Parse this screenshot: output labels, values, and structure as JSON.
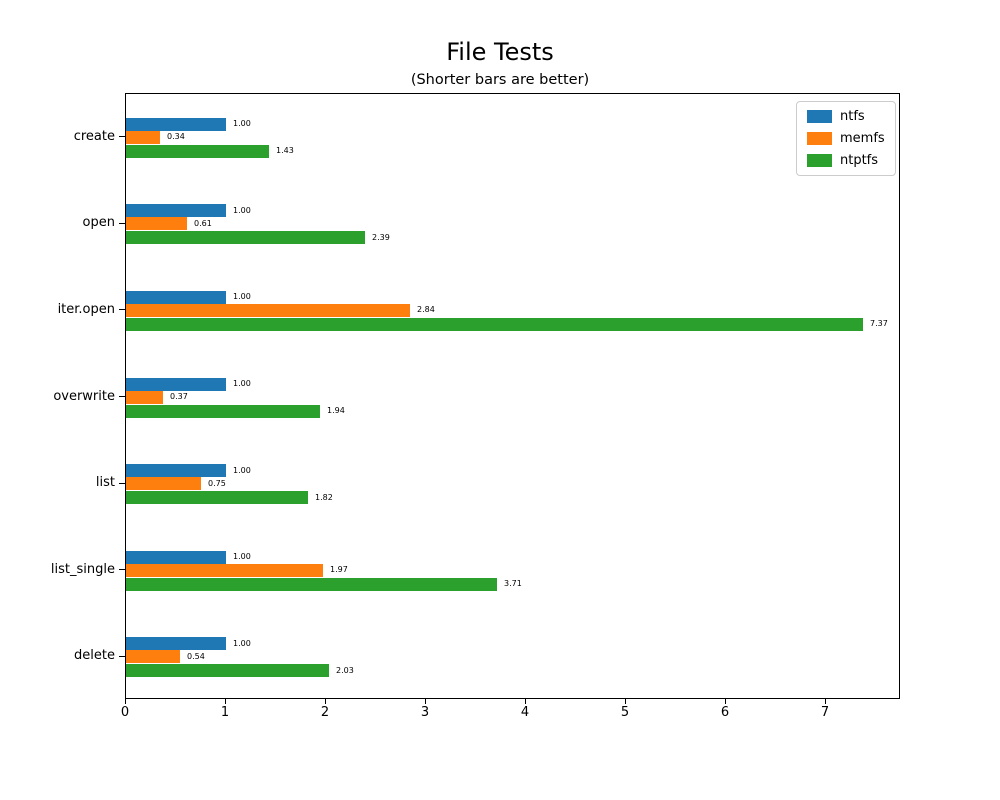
{
  "title": "File Tests",
  "subtitle": "(Shorter bars are better)",
  "chart_data": {
    "type": "bar",
    "orientation": "horizontal",
    "title": "File Tests",
    "subtitle": "(Shorter bars are better)",
    "categories": [
      "create",
      "open",
      "iter.open",
      "overwrite",
      "list",
      "list_single",
      "delete"
    ],
    "series": [
      {
        "name": "ntfs",
        "color": "#1f77b4",
        "values": [
          1.0,
          1.0,
          1.0,
          1.0,
          1.0,
          1.0,
          1.0
        ]
      },
      {
        "name": "memfs",
        "color": "#ff7f0e",
        "values": [
          0.34,
          0.61,
          2.84,
          0.37,
          0.75,
          1.97,
          0.54
        ]
      },
      {
        "name": "ntptfs",
        "color": "#2ca02c",
        "values": [
          1.43,
          2.39,
          7.37,
          1.94,
          1.82,
          3.71,
          2.03
        ]
      }
    ],
    "xlabel": "",
    "ylabel": "",
    "xlim": [
      0,
      7.75
    ],
    "xticks": [
      0,
      1,
      2,
      3,
      4,
      5,
      6,
      7
    ],
    "bar_labels": true,
    "bar_label_decimals": 2,
    "legend_position": "upper right",
    "grid": false,
    "frame": true
  }
}
